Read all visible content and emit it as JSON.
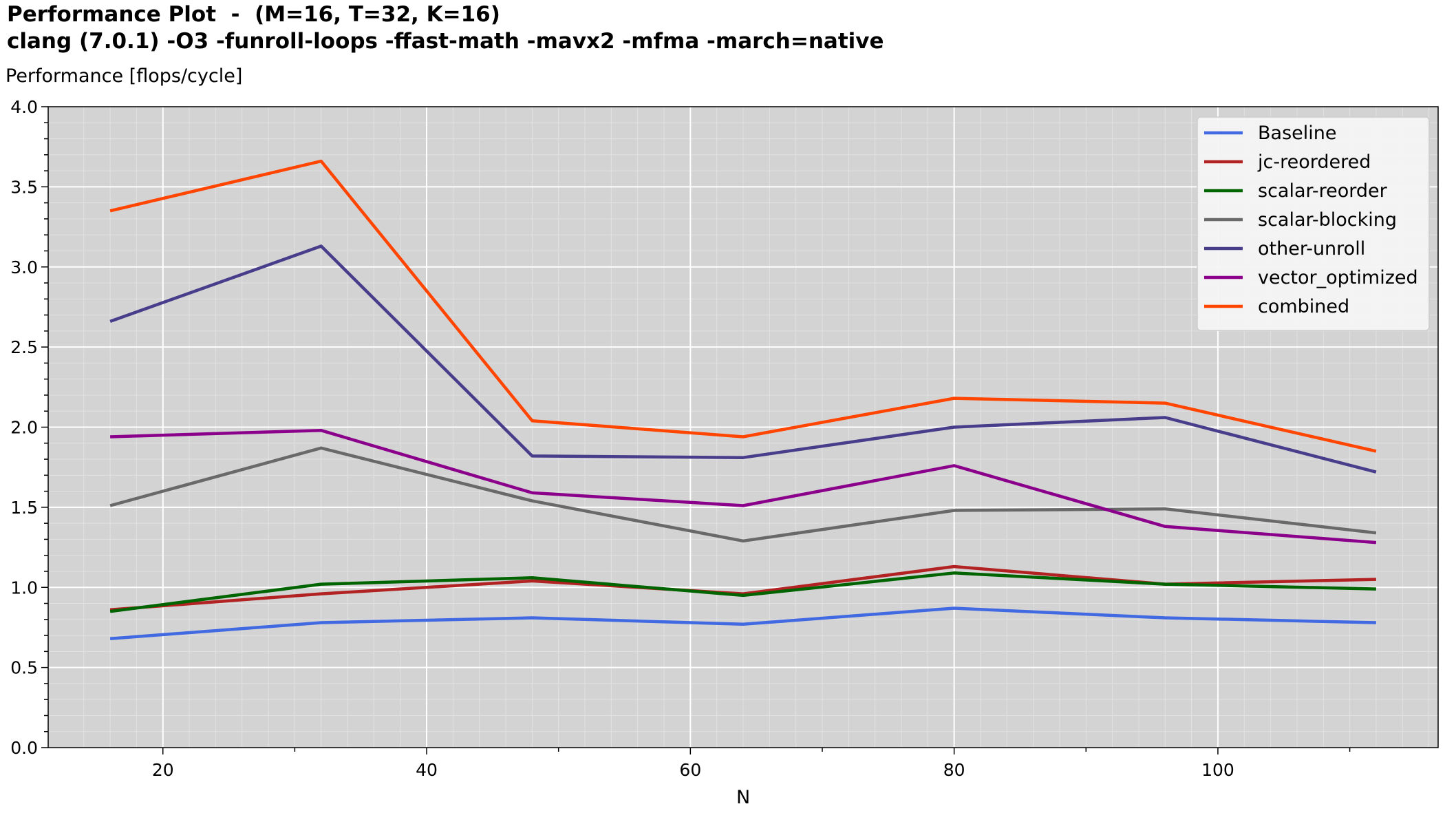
{
  "chart_data": {
    "type": "line",
    "title": "Performance Plot  -  (M=16, T=32, K=16)",
    "subtitle": "clang (7.0.1) -O3 -funroll-loops -ffast-math -mavx2 -mfma -march=native",
    "ylabel": "Performance [flops/cycle]",
    "xlabel": "N",
    "xlim": [
      11.3,
      116.7
    ],
    "ylim": [
      0.0,
      4.0
    ],
    "x_ticks": [
      20,
      40,
      60,
      80,
      100
    ],
    "x_tick_labels": [
      "20",
      "40",
      "60",
      "80",
      "100"
    ],
    "y_ticks": [
      0.0,
      0.5,
      1.0,
      1.5,
      2.0,
      2.5,
      3.0,
      3.5,
      4.0
    ],
    "y_tick_labels": [
      "0.0",
      "0.5",
      "1.0",
      "1.5",
      "2.0",
      "2.5",
      "3.0",
      "3.5",
      "4.0"
    ],
    "grid": true,
    "background": "#d3d3d3",
    "legend_position": "top-right",
    "x": [
      16,
      32,
      48,
      64,
      80,
      96,
      112
    ],
    "series": [
      {
        "name": "Baseline",
        "color": "#4169e1",
        "values": [
          0.68,
          0.78,
          0.81,
          0.77,
          0.87,
          0.81,
          0.78
        ]
      },
      {
        "name": "jc-reordered",
        "color": "#b22222",
        "values": [
          0.86,
          0.96,
          1.04,
          0.96,
          1.13,
          1.02,
          1.05
        ]
      },
      {
        "name": "scalar-reorder",
        "color": "#006400",
        "values": [
          0.85,
          1.02,
          1.06,
          0.95,
          1.09,
          1.02,
          0.99
        ]
      },
      {
        "name": "scalar-blocking",
        "color": "#696969",
        "values": [
          1.51,
          1.87,
          1.54,
          1.29,
          1.48,
          1.49,
          1.34
        ]
      },
      {
        "name": "other-unroll",
        "color": "#483d8b",
        "values": [
          2.66,
          3.13,
          1.82,
          1.81,
          2.0,
          2.06,
          1.72
        ]
      },
      {
        "name": "vector_optimized",
        "color": "#8b008b",
        "values": [
          1.94,
          1.98,
          1.59,
          1.51,
          1.76,
          1.38,
          1.28
        ]
      },
      {
        "name": "combined",
        "color": "#ff4500",
        "values": [
          3.35,
          3.66,
          2.04,
          1.94,
          2.18,
          2.15,
          1.85
        ]
      }
    ]
  }
}
